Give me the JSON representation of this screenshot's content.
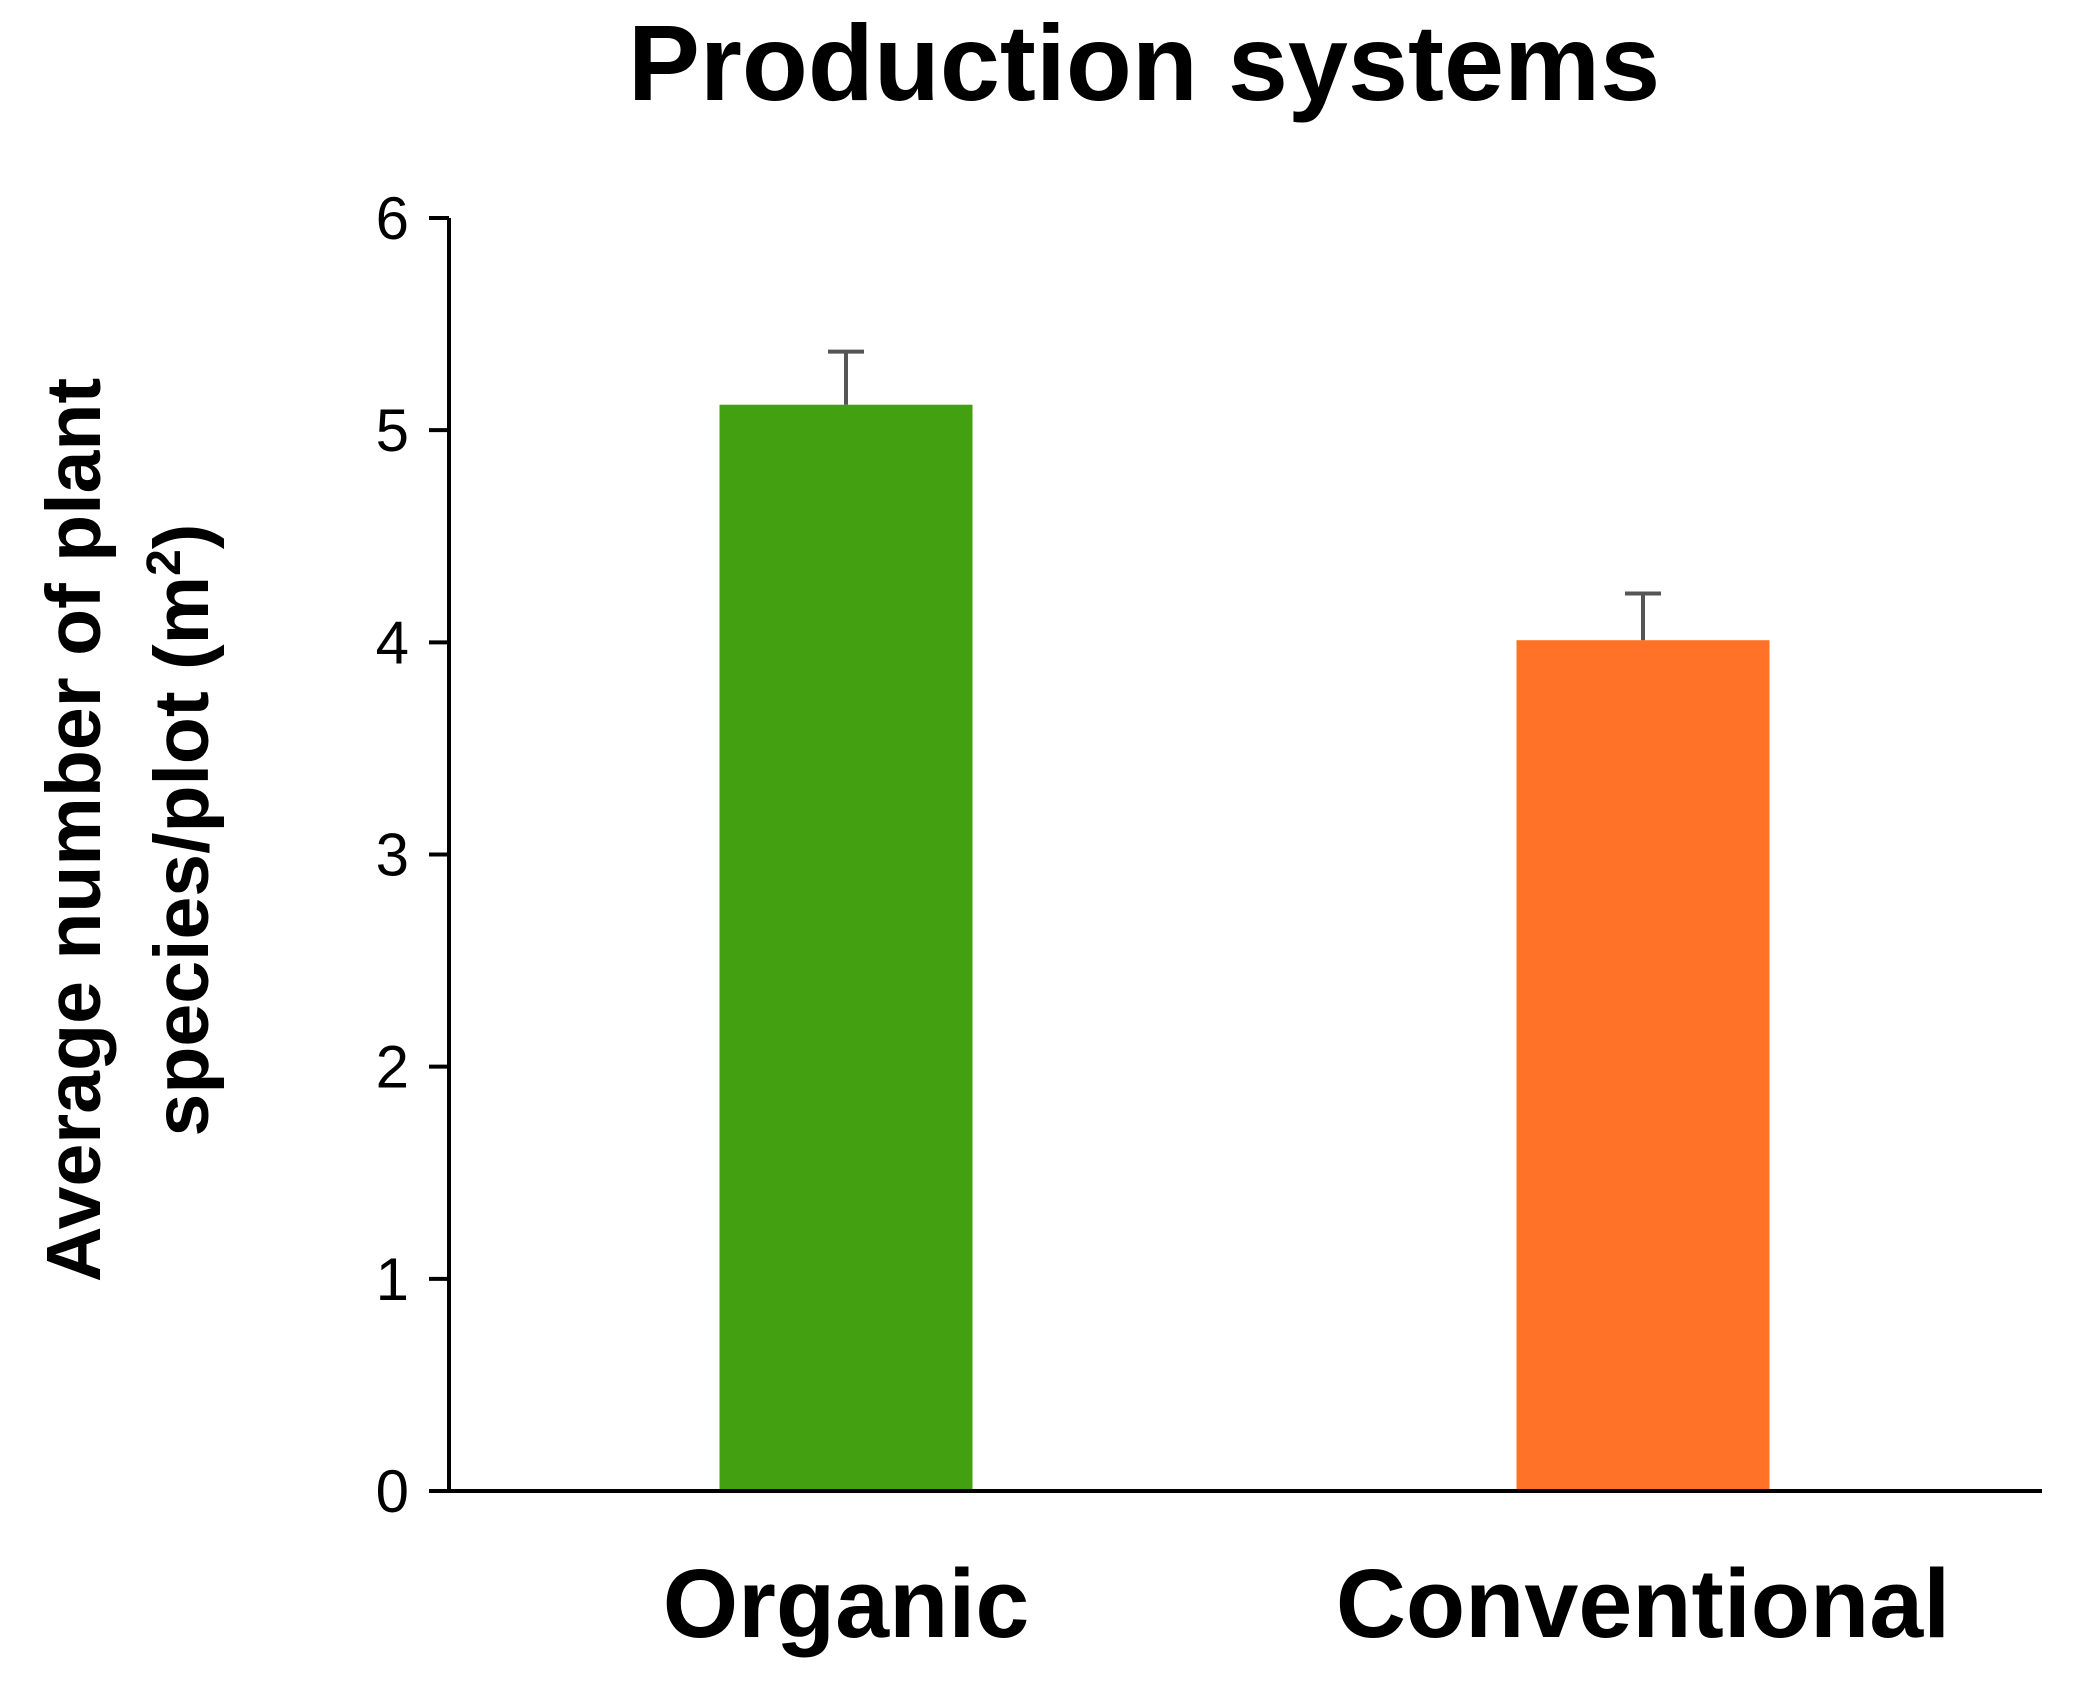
{
  "chart_data": {
    "type": "bar",
    "title": "Production systems",
    "xlabel": "",
    "ylabel": {
      "line1": "Average number of plant",
      "line2": "species/plot  (m",
      "line2_superscript": "2",
      "line2_suffix": ")"
    },
    "categories": [
      "Organic",
      "Conventional"
    ],
    "values": [
      5.12,
      4.01
    ],
    "error_upper": [
      0.25,
      0.22
    ],
    "colors": [
      "#43A010",
      "#FF7228"
    ],
    "ylim": [
      0,
      6
    ],
    "yticks": [
      0,
      1,
      2,
      3,
      4,
      5,
      6
    ],
    "ytick_labels": [
      "0",
      "1",
      "2",
      "3",
      "4",
      "5",
      "6"
    ],
    "grid": false,
    "legend": "none"
  }
}
